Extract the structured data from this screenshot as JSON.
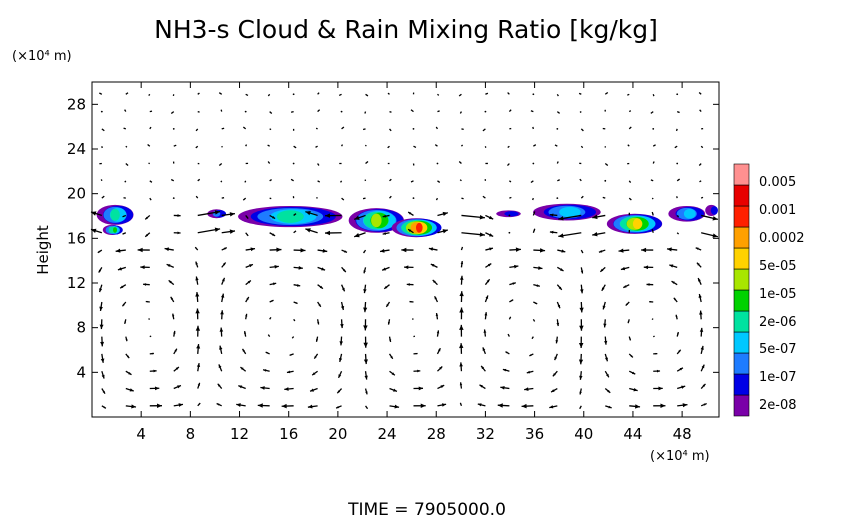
{
  "chart_data": {
    "type": "heatmap",
    "title": "NH3-s Cloud & Rain Mixing Ratio [kg/kg]",
    "ylabel": "Height",
    "x_unit": "(×10⁴ m)",
    "y_unit": "(×10⁴ m)",
    "footer": "TIME  =  7905000.0",
    "xlim": [
      0,
      51
    ],
    "ylim": [
      0,
      30
    ],
    "x_ticks": [
      4,
      8,
      12,
      16,
      20,
      24,
      28,
      32,
      36,
      40,
      44,
      48
    ],
    "y_ticks": [
      4,
      8,
      12,
      16,
      20,
      24,
      28
    ],
    "legend": {
      "placement": "right",
      "levels": [
        "2e-08",
        "1e-07",
        "5e-07",
        "2e-06",
        "1e-05",
        "5e-05",
        "0.0002",
        "0.001",
        "0.005"
      ],
      "colors": [
        "#7a00a8",
        "#0000e6",
        "#1e7cff",
        "#00c8ff",
        "#00e2a0",
        "#00d200",
        "#a8e600",
        "#ffd200",
        "#ffa000",
        "#ff2000",
        "#e80000",
        "#ff9090"
      ]
    },
    "cloud_patches": [
      {
        "x": [
          0.5,
          3.5
        ],
        "y": [
          17.2,
          19.0
        ],
        "peak": 4
      },
      {
        "x": [
          1.0,
          2.5
        ],
        "y": [
          16.3,
          17.2
        ],
        "peak": 5
      },
      {
        "x": [
          9.5,
          11.0
        ],
        "y": [
          17.8,
          18.6
        ],
        "peak": 2
      },
      {
        "x": [
          12.0,
          20.5
        ],
        "y": [
          17.0,
          18.9
        ],
        "peak": 4
      },
      {
        "x": [
          21.0,
          25.5
        ],
        "y": [
          16.5,
          18.7
        ],
        "peak": 6
      },
      {
        "x": [
          24.5,
          28.5
        ],
        "y": [
          16.1,
          17.8
        ],
        "peak": 9
      },
      {
        "x": [
          33.0,
          35.0
        ],
        "y": [
          17.9,
          18.5
        ],
        "peak": 1
      },
      {
        "x": [
          36.0,
          41.5
        ],
        "y": [
          17.6,
          19.1
        ],
        "peak": 3
      },
      {
        "x": [
          42.0,
          46.5
        ],
        "y": [
          16.4,
          18.2
        ],
        "peak": 7
      },
      {
        "x": [
          47.0,
          50.0
        ],
        "y": [
          17.5,
          18.9
        ],
        "peak": 3
      },
      {
        "x": [
          50.0,
          51.0
        ],
        "y": [
          18.0,
          19.0
        ],
        "peak": 1
      }
    ],
    "vector_field": {
      "inversion_level": 18,
      "cells": [
        [
          0,
          9,
          1
        ],
        [
          9,
          22,
          -1
        ],
        [
          22,
          30,
          1
        ],
        [
          30,
          40,
          -1
        ],
        [
          40,
          51,
          1
        ]
      ]
    }
  }
}
